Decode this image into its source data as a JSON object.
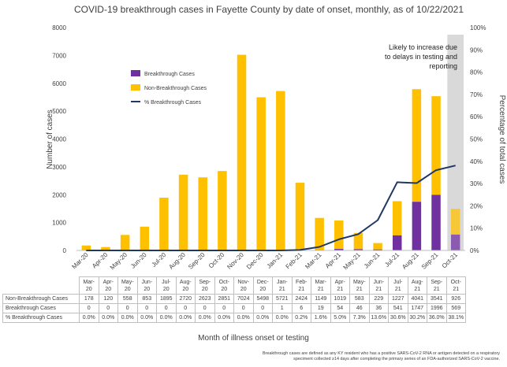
{
  "title": "COVID-19 breakthrough cases in Fayette County by date of onset, monthly, as of 10/22/2021",
  "y_left_label": "Number of cases",
  "y_right_label": "Percentage of total cases",
  "x_label": "Month of illness onset or testing",
  "annotation": [
    "Likely to increase due",
    "to delays in testing and",
    "reporting"
  ],
  "footnote": [
    "Breakthrough cases are defined as any KY resident who has a positive SARS-CoV-2 RNA or antigen detected on a respiratory",
    "speciment collected ≥14 days after completing the primary series of an FDA-authorized SARS-CoV-2 vaccine."
  ],
  "colors": {
    "breakthrough": "#7030a0",
    "non_breakthrough": "#ffc000",
    "pct_line": "#1f3864",
    "shade": "#d9d9d9"
  },
  "chart_data": {
    "type": "bar",
    "stacked": true,
    "categories": [
      "Mar-20",
      "Apr-20",
      "May-20",
      "Jun-20",
      "Jul-20",
      "Aug-20",
      "Sep-20",
      "Oct-20",
      "Nov-20",
      "Dec-20",
      "Jan-21",
      "Feb-21",
      "Mar-21",
      "Apr-21",
      "May-21",
      "Jun-21",
      "Jul-21",
      "Aug-21",
      "Sep-21",
      "Oct-21"
    ],
    "table_labels": [
      "Mar-\n20",
      "Apr-\n20",
      "May-\n20",
      "Jun-\n20",
      "Jul-\n20",
      "Aug-\n20",
      "Sep-\n20",
      "Oct-\n20",
      "Nov-\n20",
      "Dec-\n20",
      "Jan-\n21",
      "Feb-\n21",
      "Mar-\n21",
      "Apr-\n21",
      "May-\n21",
      "Jun-\n21",
      "Jul-\n21",
      "Aug-\n21",
      "Sep-\n21",
      "Oct-\n21"
    ],
    "series": [
      {
        "name": "Breakthrough Cases",
        "values": [
          0,
          0,
          0,
          0,
          0,
          0,
          0,
          0,
          0,
          0,
          1,
          6,
          19,
          54,
          46,
          36,
          541,
          1747,
          1996,
          569
        ]
      },
      {
        "name": "Non-Breakthrough Cases",
        "values": [
          178,
          120,
          558,
          853,
          1895,
          2720,
          2623,
          2851,
          7024,
          5498,
          5721,
          2424,
          1149,
          1019,
          583,
          229,
          1227,
          4041,
          3541,
          926
        ]
      },
      {
        "name": "% Breakthrough Cases",
        "axis": "right",
        "values": [
          0.0,
          0.0,
          0.0,
          0.0,
          0.0,
          0.0,
          0.0,
          0.0,
          0.0,
          0.0,
          0.0,
          0.2,
          1.6,
          5.0,
          7.3,
          13.6,
          30.6,
          30.2,
          36.0,
          38.1
        ]
      }
    ],
    "pct_labels": [
      "0.0%",
      "0.0%",
      "0.0%",
      "0.0%",
      "0.0%",
      "0.0%",
      "0.0%",
      "0.0%",
      "0.0%",
      "0.0%",
      "0.0%",
      "0.2%",
      "1.6%",
      "5.0%",
      "7.3%",
      "13.6%",
      "30.6%",
      "30.2%",
      "36.0%",
      "38.1%"
    ],
    "ylim_left": [
      0,
      8000
    ],
    "y_ticks_left": [
      "0",
      "1000",
      "2000",
      "3000",
      "4000",
      "5000",
      "6000",
      "7000",
      "8000"
    ],
    "ylim_right": [
      0,
      100
    ],
    "y_ticks_right": [
      "0%",
      "10%",
      "20%",
      "30%",
      "40%",
      "50%",
      "60%",
      "70%",
      "80%",
      "90%",
      "100%"
    ],
    "legend": [
      "Breakthrough Cases",
      "Non-Breakthrough Cases",
      "% Breakthrough Cases"
    ],
    "legend_position": "upper-left inside plot",
    "shaded_category": "Oct-21",
    "grid": false,
    "table_rows": [
      "Non-Breakthrough Cases",
      "Breakthrough Cases",
      "% Breakthrough Cases"
    ]
  }
}
